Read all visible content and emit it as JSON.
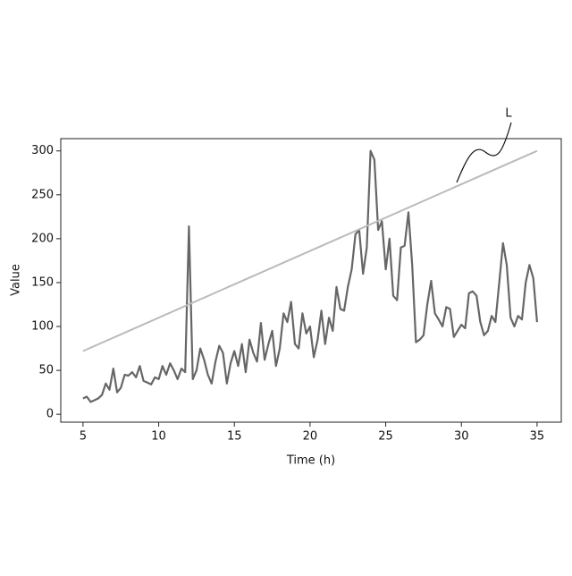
{
  "chart_data": {
    "type": "line",
    "x_label": "Time (h)",
    "y_label": "Value",
    "xlim": [
      3.53,
      36.6
    ],
    "ylim": [
      -9,
      314
    ],
    "xticks": [
      5,
      10,
      15,
      20,
      25,
      30,
      35
    ],
    "yticks": [
      0,
      50,
      100,
      150,
      200,
      250,
      300
    ],
    "series": [
      {
        "color": "#666666",
        "x": [
          5,
          5.25,
          5.5,
          5.75,
          6,
          6.25,
          6.5,
          6.75,
          7,
          7.25,
          7.5,
          7.75,
          8,
          8.25,
          8.5,
          8.75,
          9,
          9.25,
          9.5,
          9.75,
          10,
          10.25,
          10.5,
          10.75,
          11,
          11.25,
          11.5,
          11.75,
          12,
          12.25,
          12.5,
          12.75,
          13,
          13.25,
          13.5,
          13.75,
          14,
          14.25,
          14.5,
          14.75,
          15,
          15.25,
          15.5,
          15.75,
          16,
          16.25,
          16.5,
          16.75,
          17,
          17.25,
          17.5,
          17.75,
          18,
          18.25,
          18.5,
          18.75,
          19,
          19.25,
          19.5,
          19.75,
          20,
          20.25,
          20.5,
          20.75,
          21,
          21.25,
          21.5,
          21.75,
          22,
          22.25,
          22.5,
          22.75,
          23,
          23.25,
          23.5,
          23.75,
          24,
          24.25,
          24.5,
          24.75,
          25,
          25.25,
          25.5,
          25.75,
          26,
          26.25,
          26.5,
          26.75,
          27,
          27.25,
          27.5,
          27.75,
          28,
          28.25,
          28.5,
          28.75,
          29,
          29.25,
          29.5,
          29.75,
          30,
          30.25,
          30.5,
          30.75,
          31,
          31.25,
          31.5,
          31.75,
          32,
          32.25,
          32.5,
          32.75,
          33,
          33.25,
          33.5,
          33.75,
          34,
          34.25,
          34.5,
          34.75,
          35
        ],
        "values": [
          18,
          20,
          14,
          16,
          18,
          22,
          35,
          28,
          52,
          25,
          30,
          45,
          44,
          48,
          42,
          55,
          38,
          36,
          34,
          42,
          40,
          55,
          45,
          58,
          50,
          40,
          52,
          48,
          214,
          40,
          50,
          75,
          62,
          45,
          35,
          60,
          78,
          70,
          35,
          58,
          72,
          55,
          80,
          48,
          85,
          70,
          60,
          104,
          62,
          80,
          95,
          55,
          75,
          115,
          105,
          128,
          80,
          75,
          115,
          92,
          100,
          65,
          85,
          118,
          80,
          110,
          95,
          145,
          120,
          118,
          145,
          165,
          205,
          210,
          160,
          190,
          300,
          290,
          210,
          220,
          165,
          200,
          135,
          130,
          190,
          192,
          230,
          170,
          82,
          85,
          90,
          125,
          152,
          115,
          108,
          100,
          122,
          120,
          88,
          95,
          102,
          98,
          138,
          140,
          135,
          105,
          90,
          95,
          112,
          105,
          150,
          195,
          170,
          110,
          100,
          112,
          108,
          150,
          170,
          155,
          105
        ]
      },
      {
        "name": "L",
        "color": "#bbbbbb",
        "x": [
          5,
          35
        ],
        "values": [
          72,
          300
        ]
      }
    ]
  }
}
